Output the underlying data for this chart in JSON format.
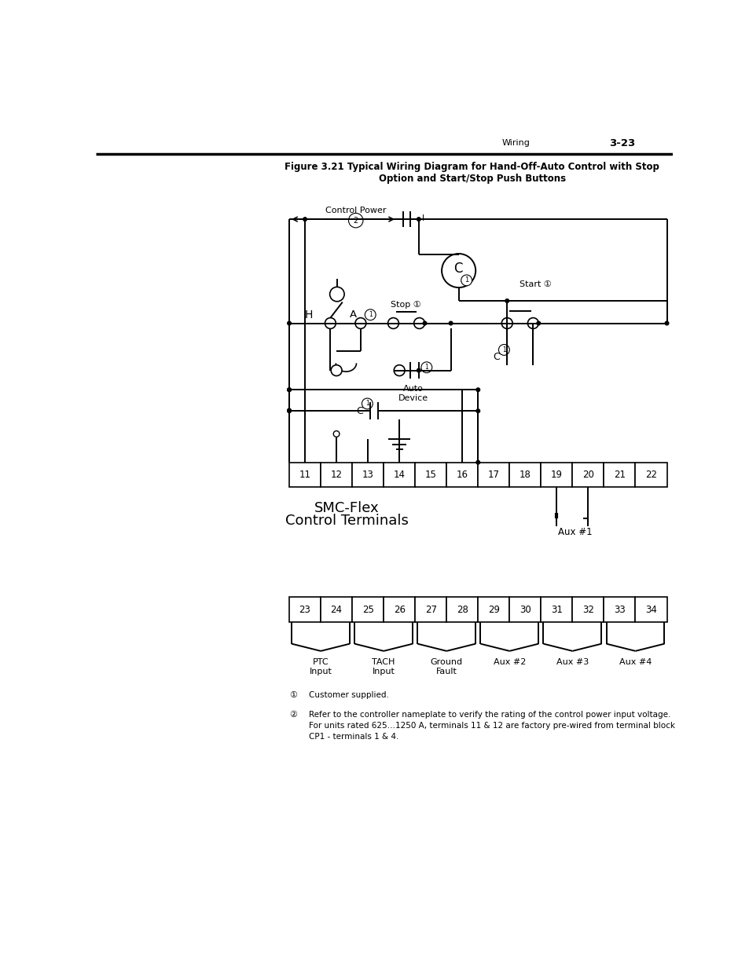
{
  "title_line1": "Figure 3.21 Typical Wiring Diagram for Hand-Off-Auto Control with Stop",
  "title_line2": "Option and Start/Stop Push Buttons",
  "header_right": "Wiring",
  "header_page": "3-23",
  "fig_width": 9.54,
  "fig_height": 12.35,
  "bg_color": "#ffffff",
  "line_color": "#000000",
  "note1_text": "Customer supplied.",
  "note2_text": "Refer to the controller nameplate to verify the rating of the control power input voltage.\nFor units rated 625…1250 A, terminals 11 & 12 are factory pre-wired from terminal block\nCP1 - terminals 1 & 4."
}
